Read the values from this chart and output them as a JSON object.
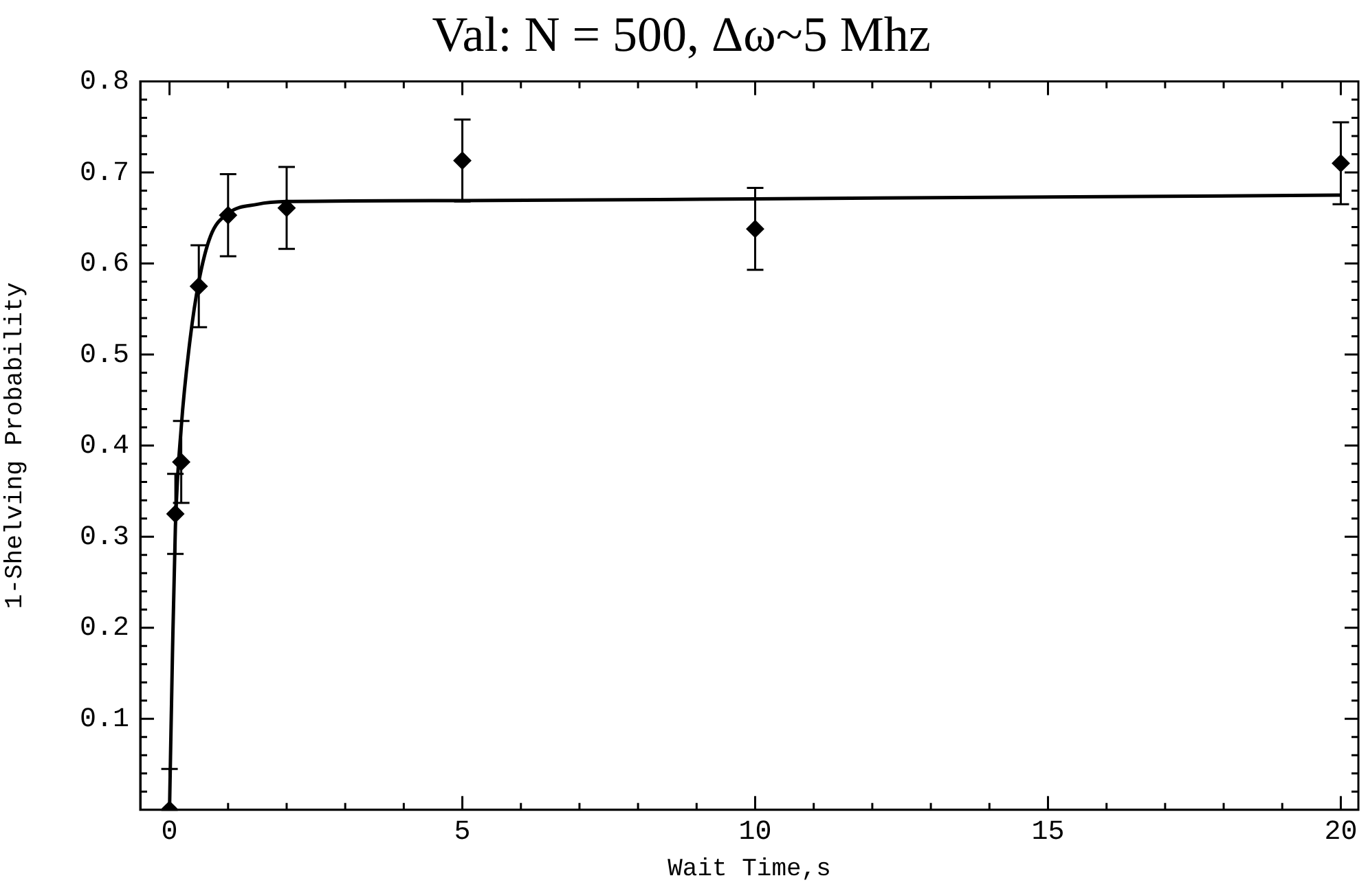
{
  "chart_data": {
    "type": "scatter",
    "title": "Val: N = 500, Δω~5 Mhz",
    "xlabel": "Wait Time,s",
    "ylabel": "1-Shelving Probability",
    "xlim": [
      -0.5,
      20.3
    ],
    "ylim": [
      0,
      0.8
    ],
    "xticks": [
      0,
      {
        "value": 1,
        "label": null
      },
      {
        "value": 2,
        "label": null
      },
      {
        "value": 3,
        "label": null
      },
      {
        "value": 4,
        "label": null
      },
      5,
      {
        "value": 6,
        "label": null
      },
      {
        "value": 7,
        "label": null
      },
      {
        "value": 8,
        "label": null
      },
      {
        "value": 9,
        "label": null
      },
      10,
      {
        "value": 11,
        "label": null
      },
      {
        "value": 12,
        "label": null
      },
      {
        "value": 13,
        "label": null
      },
      {
        "value": 14,
        "label": null
      },
      15,
      {
        "value": 16,
        "label": null
      },
      {
        "value": 17,
        "label": null
      },
      {
        "value": 18,
        "label": null
      },
      {
        "value": 19,
        "label": null
      },
      20
    ],
    "yticks": [
      {
        "value": 0.02,
        "label": null
      },
      {
        "value": 0.04,
        "label": null
      },
      {
        "value": 0.06,
        "label": null
      },
      {
        "value": 0.08,
        "label": null
      },
      0.1,
      {
        "value": 0.12,
        "label": null
      },
      {
        "value": 0.14,
        "label": null
      },
      {
        "value": 0.16,
        "label": null
      },
      {
        "value": 0.18,
        "label": null
      },
      0.2,
      {
        "value": 0.22,
        "label": null
      },
      {
        "value": 0.24,
        "label": null
      },
      {
        "value": 0.26,
        "label": null
      },
      {
        "value": 0.28,
        "label": null
      },
      0.3,
      {
        "value": 0.32,
        "label": null
      },
      {
        "value": 0.34,
        "label": null
      },
      {
        "value": 0.36,
        "label": null
      },
      {
        "value": 0.38,
        "label": null
      },
      0.4,
      {
        "value": 0.42,
        "label": null
      },
      {
        "value": 0.44,
        "label": null
      },
      {
        "value": 0.46,
        "label": null
      },
      {
        "value": 0.48,
        "label": null
      },
      0.5,
      {
        "value": 0.52,
        "label": null
      },
      {
        "value": 0.54,
        "label": null
      },
      {
        "value": 0.56,
        "label": null
      },
      {
        "value": 0.58,
        "label": null
      },
      0.6,
      {
        "value": 0.62,
        "label": null
      },
      {
        "value": 0.64,
        "label": null
      },
      {
        "value": 0.66,
        "label": null
      },
      {
        "value": 0.68,
        "label": null
      },
      0.7,
      {
        "value": 0.72,
        "label": null
      },
      {
        "value": 0.74,
        "label": null
      },
      {
        "value": 0.76,
        "label": null
      },
      {
        "value": 0.78,
        "label": null
      },
      0.8
    ],
    "series": [
      {
        "color": "#000000",
        "marker": "diamond",
        "x": [
          0,
          0.1,
          0.2,
          0.5,
          1,
          2,
          5,
          10,
          20
        ],
        "values": [
          0,
          0.325,
          0.382,
          0.575,
          0.653,
          0.661,
          0.713,
          0.638,
          0.71
        ],
        "errors": [
          [
            0,
            0.045
          ],
          0.044,
          0.045,
          0.045,
          0.045,
          0.045,
          0.045,
          0.045,
          0.045
        ]
      },
      {
        "type": "line",
        "color": "#000000",
        "marker": "none",
        "x": [
          0,
          0.05,
          0.1,
          0.2,
          0.35,
          0.5,
          0.7,
          1,
          1.5,
          2,
          5,
          10,
          20
        ],
        "values": [
          0,
          0.17,
          0.31,
          0.42,
          0.516,
          0.58,
          0.63,
          0.655,
          0.665,
          0.668,
          0.669,
          0.671,
          0.675
        ]
      }
    ]
  }
}
